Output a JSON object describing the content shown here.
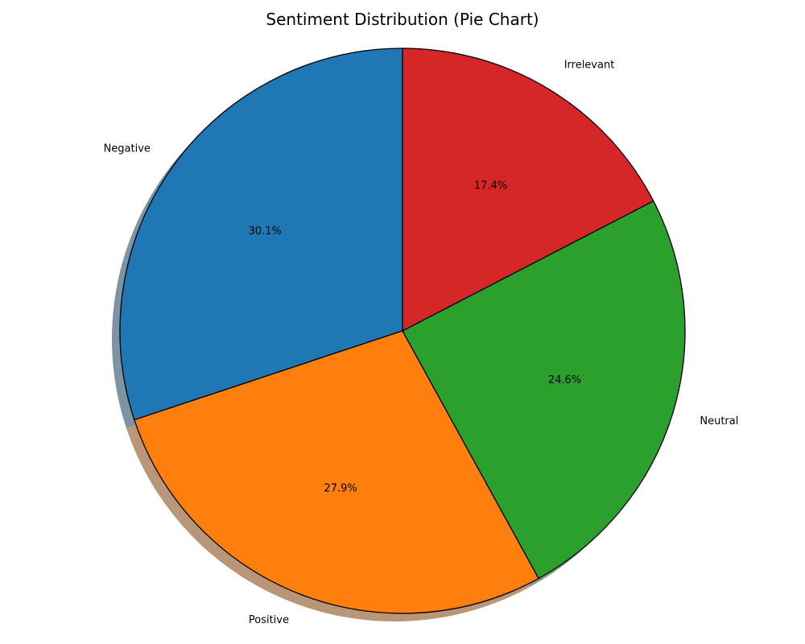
{
  "chart_data": {
    "type": "pie",
    "title": "Sentiment Distribution (Pie Chart)",
    "categories": [
      "Negative",
      "Positive",
      "Neutral",
      "Irrelevant"
    ],
    "values": [
      30.1,
      27.9,
      24.6,
      17.4
    ],
    "percent_labels": [
      "30.1%",
      "27.9%",
      "24.6%",
      "17.4%"
    ],
    "colors": [
      "#1f77b4",
      "#ff7f0e",
      "#2ca02c",
      "#d62728"
    ],
    "start_angle_deg": 90,
    "direction": "counterclockwise",
    "shadow": true,
    "edge_color": "#000000"
  }
}
